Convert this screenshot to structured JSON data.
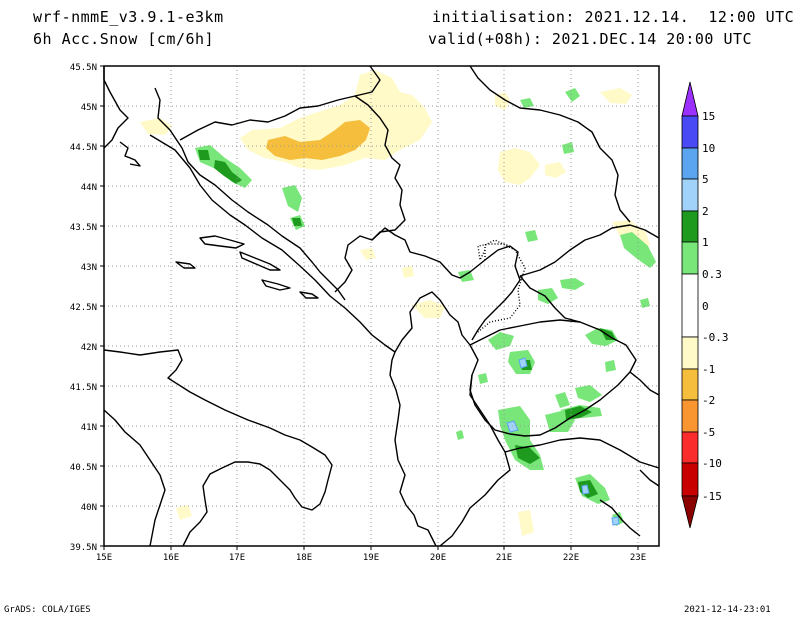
{
  "header": {
    "model": "wrf-nmmE_v3.9.1-e3km",
    "field": "6h Acc.Snow [cm/6h]",
    "initialisation": "initialisation: 2021.12.14.  12:00 UTC",
    "valid": "valid(+08h): 2021.DEC.14 20:00 UTC"
  },
  "footer": {
    "credit": "GrADS: COLA/IGES",
    "timestamp": "2021-12-14-23:01"
  },
  "map": {
    "lat_labels": [
      "45.5N",
      "45N",
      "44.5N",
      "44N",
      "43.5N",
      "43N",
      "42.5N",
      "42N",
      "41.5N",
      "41N",
      "40.5N",
      "40N",
      "39.5N"
    ],
    "lon_labels": [
      "15E",
      "16E",
      "17E",
      "18E",
      "19E",
      "20E",
      "21E",
      "22E",
      "23E"
    ],
    "extent": {
      "lon": [
        15,
        23.3
      ],
      "lat": [
        39.5,
        45.5
      ]
    }
  },
  "colorbar": {
    "labels": [
      "15",
      "10",
      "5",
      "2",
      "1",
      "0.3",
      "0",
      "-0.3",
      "-1",
      "-2",
      "-5",
      "-10",
      "-15"
    ],
    "colors": {
      "gt15": "#9b30ff",
      "10_15": "#4a4af5",
      "5_10": "#5aa4f0",
      "2_5": "#a0d2fa",
      "1_2": "#1e9b1e",
      "0.3_1": "#78e678",
      "neutral": "#ffffff",
      "m0.3_m1": "#fffac8",
      "m1_m2": "#f5be3c",
      "m2_m5": "#fa9632",
      "m5_m10": "#fa2c2c",
      "m10_m15": "#c80000",
      "lt_m15": "#8b0000"
    }
  }
}
